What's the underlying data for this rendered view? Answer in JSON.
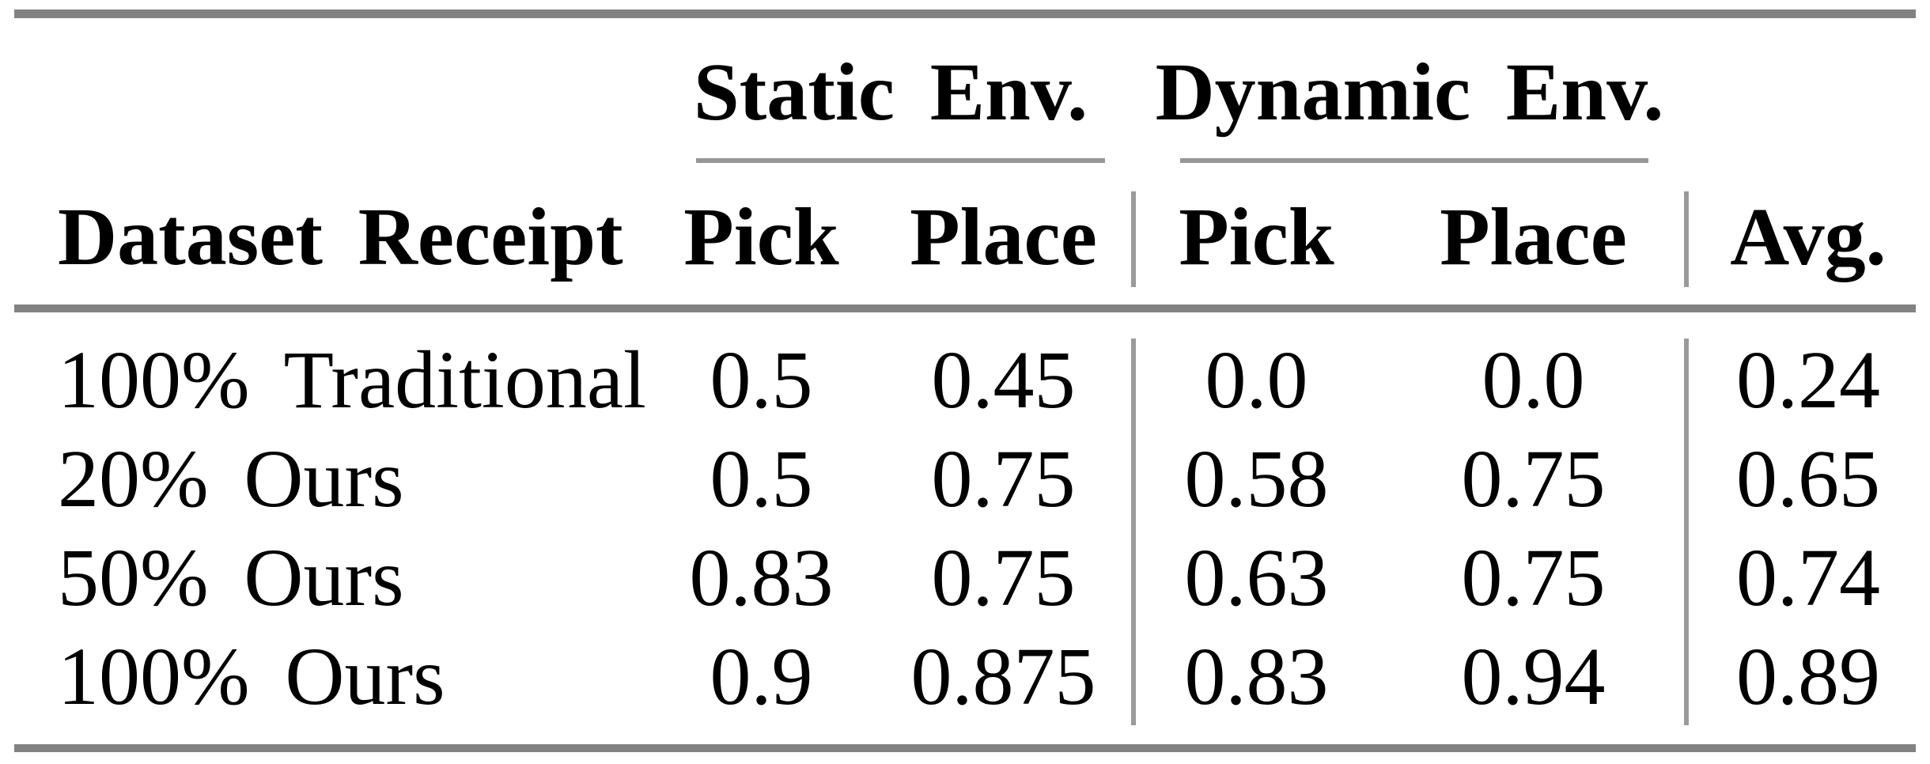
{
  "colors": {
    "background": "#ffffff",
    "text": "#000000",
    "thick_rule": "#828282",
    "thin_rule": "#979797",
    "column_divider": "#9a9a9a"
  },
  "header": {
    "col1": "Dataset Receipt",
    "groups": [
      {
        "label": "Static Env.",
        "sub": [
          "Pick",
          "Place"
        ]
      },
      {
        "label": "Dynamic Env.",
        "sub": [
          "Pick",
          "Place"
        ]
      }
    ],
    "avg": "Avg."
  },
  "rows": [
    {
      "receipt": "100% Traditional",
      "static_pick": "0.5",
      "static_place": "0.45",
      "dyn_pick": "0.0",
      "dyn_place": "0.0",
      "avg": "0.24"
    },
    {
      "receipt": "20% Ours",
      "static_pick": "0.5",
      "static_place": "0.75",
      "dyn_pick": "0.58",
      "dyn_place": "0.75",
      "avg": "0.65"
    },
    {
      "receipt": "50% Ours",
      "static_pick": "0.83",
      "static_place": "0.75",
      "dyn_pick": "0.63",
      "dyn_place": "0.75",
      "avg": "0.74"
    },
    {
      "receipt": "100% Ours",
      "static_pick": "0.9",
      "static_place": "0.875",
      "dyn_pick": "0.83",
      "dyn_place": "0.94",
      "avg": "0.89"
    }
  ],
  "chart_data": {
    "type": "table",
    "columns": [
      "Dataset Receipt",
      "Static Env. Pick",
      "Static Env. Place",
      "Dynamic Env. Pick",
      "Dynamic Env. Place",
      "Avg."
    ],
    "rows": [
      [
        "100% Traditional",
        0.5,
        0.45,
        0.0,
        0.0,
        0.24
      ],
      [
        "20% Ours",
        0.5,
        0.75,
        0.58,
        0.75,
        0.65
      ],
      [
        "50% Ours",
        0.83,
        0.75,
        0.63,
        0.75,
        0.74
      ],
      [
        "100% Ours",
        0.9,
        0.875,
        0.83,
        0.94,
        0.89
      ]
    ]
  }
}
